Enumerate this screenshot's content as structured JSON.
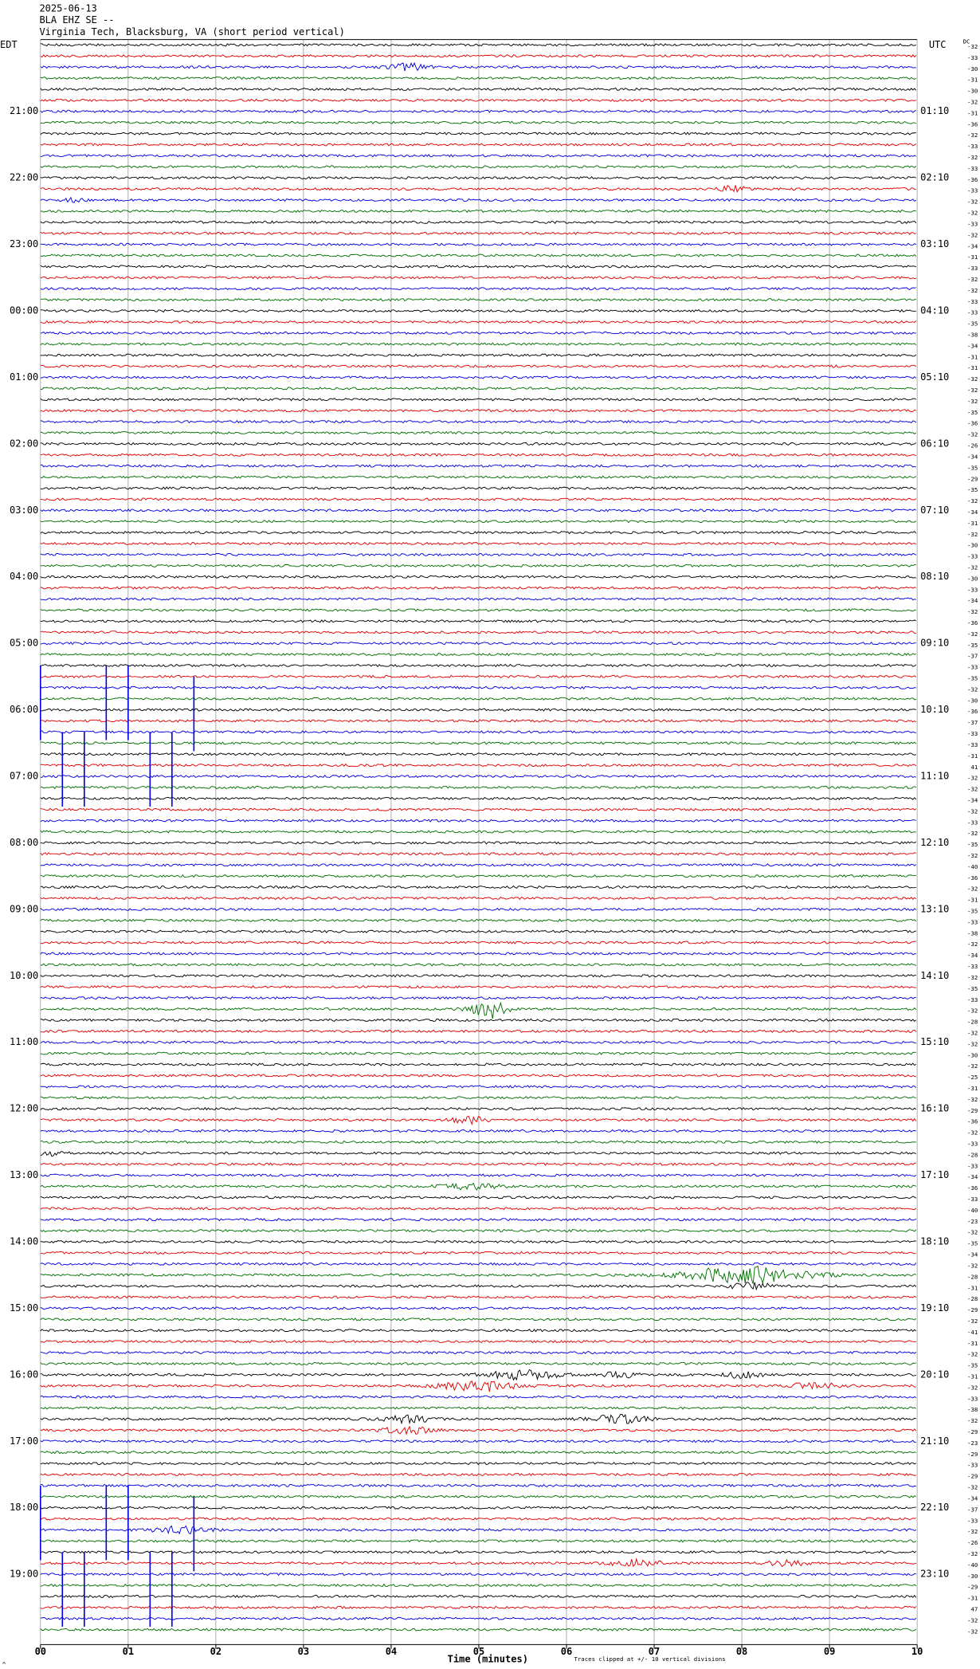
{
  "header": {
    "date": "2025-06-13",
    "station": "BLA EHZ SE --",
    "location": "Virginia Tech, Blacksburg, VA (short period vertical)"
  },
  "left_axis": {
    "title": "EDT",
    "labels": [
      "21:00",
      "22:00",
      "23:00",
      "00:00",
      "01:00",
      "02:00",
      "03:00",
      "04:00",
      "05:00",
      "06:00",
      "07:00",
      "08:00",
      "09:00",
      "10:00",
      "11:00",
      "12:00",
      "13:00",
      "14:00",
      "15:00",
      "16:00",
      "17:00",
      "18:00",
      "19:00"
    ]
  },
  "right_axis": {
    "title": "UTC",
    "dc_title": "DC",
    "labels": [
      "01:10",
      "02:10",
      "03:10",
      "04:10",
      "05:10",
      "06:10",
      "07:10",
      "08:10",
      "09:10",
      "10:10",
      "11:10",
      "12:10",
      "13:10",
      "14:10",
      "15:10",
      "16:10",
      "17:10",
      "18:10",
      "19:10",
      "20:10",
      "21:10",
      "22:10",
      "23:10"
    ],
    "dc_offsets": [
      -32,
      -33,
      -30,
      -31,
      -30,
      -32,
      -31,
      -36,
      -32,
      -33,
      -32,
      -33,
      -36,
      -33,
      -32,
      -32,
      -33,
      -32,
      -34,
      -31,
      -33,
      -32,
      -32,
      -33,
      -33,
      -35,
      -38,
      -34,
      -31,
      -31,
      -32,
      -32,
      -32,
      -35,
      -36,
      -32,
      -26,
      -34,
      -35,
      -29,
      -35,
      -32,
      -34,
      -31,
      -32,
      -30,
      -33,
      -32,
      -30,
      -33,
      -34,
      -32,
      -36,
      -32,
      -35,
      -37,
      -33,
      -35,
      -32,
      -30,
      -36,
      -37,
      -33,
      -33,
      -31,
      41,
      -32,
      -32,
      -34,
      -32,
      -33,
      -32,
      -35,
      -32,
      -40,
      -36,
      -32,
      -31,
      -35,
      -33,
      -38,
      -32,
      -34,
      -33,
      -32,
      -35,
      -33,
      -32,
      -28,
      -32,
      -32,
      -30,
      -32,
      -25,
      -31,
      -32,
      -29,
      -36,
      -32,
      -33,
      -28,
      -33,
      -34,
      -36,
      -33,
      -40,
      -23,
      -32,
      -35,
      -34,
      -32,
      -28,
      -31,
      -28,
      -29,
      -32,
      -41,
      -31,
      -32,
      -35,
      -31,
      -32,
      -33,
      -38,
      -32,
      -29,
      -23,
      -29,
      -33,
      -29,
      -32,
      -34,
      -37,
      -33,
      -32,
      -26,
      -32,
      -40,
      -30,
      -29,
      -31,
      47,
      -32,
      -32
    ]
  },
  "x_axis": {
    "ticks": [
      "00",
      "01",
      "02",
      "03",
      "04",
      "05",
      "06",
      "07",
      "08",
      "09",
      "10"
    ],
    "title": "Time (minutes)",
    "note": "Traces clipped at +/- 10 vertical divisions"
  }
}
